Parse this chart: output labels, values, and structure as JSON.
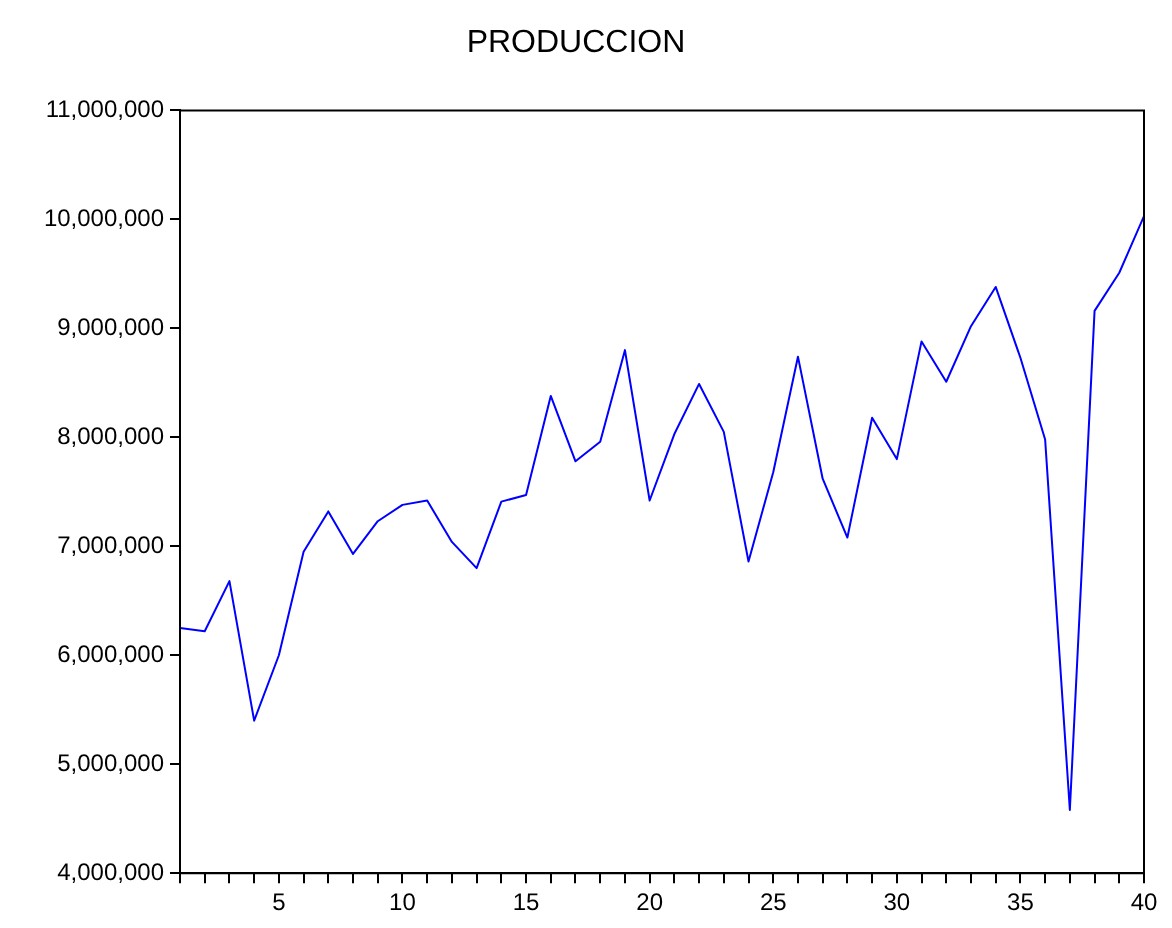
{
  "chart_data": {
    "type": "line",
    "title": "PRODUCCION",
    "x": [
      1,
      2,
      3,
      4,
      5,
      6,
      7,
      8,
      9,
      10,
      11,
      12,
      13,
      14,
      15,
      16,
      17,
      18,
      19,
      20,
      21,
      22,
      23,
      24,
      25,
      26,
      27,
      28,
      29,
      30,
      31,
      32,
      33,
      34,
      35,
      36,
      37,
      38,
      39,
      40
    ],
    "series": [
      {
        "color": "#0000ff",
        "values": [
          6250000,
          6220000,
          6680000,
          5400000,
          6000000,
          6950000,
          7320000,
          6930000,
          7230000,
          7380000,
          7420000,
          7040000,
          6800000,
          7410000,
          7470000,
          8380000,
          7780000,
          7960000,
          8800000,
          7420000,
          8030000,
          8490000,
          8050000,
          6860000,
          7680000,
          8740000,
          7620000,
          7080000,
          8180000,
          7800000,
          8880000,
          8510000,
          9020000,
          9380000,
          8730000,
          7980000,
          4580000,
          9160000,
          9510000,
          10030000
        ]
      }
    ],
    "xlim": [
      1,
      40
    ],
    "xticks": [
      {
        "value": 1,
        "label": null
      },
      {
        "value": 2,
        "label": null
      },
      {
        "value": 3,
        "label": null
      },
      {
        "value": 4,
        "label": null
      },
      5,
      {
        "value": 6,
        "label": null
      },
      {
        "value": 7,
        "label": null
      },
      {
        "value": 8,
        "label": null
      },
      {
        "value": 9,
        "label": null
      },
      10,
      {
        "value": 11,
        "label": null
      },
      {
        "value": 12,
        "label": null
      },
      {
        "value": 13,
        "label": null
      },
      {
        "value": 14,
        "label": null
      },
      15,
      {
        "value": 16,
        "label": null
      },
      {
        "value": 17,
        "label": null
      },
      {
        "value": 18,
        "label": null
      },
      {
        "value": 19,
        "label": null
      },
      20,
      {
        "value": 21,
        "label": null
      },
      {
        "value": 22,
        "label": null
      },
      {
        "value": 23,
        "label": null
      },
      {
        "value": 24,
        "label": null
      },
      25,
      {
        "value": 26,
        "label": null
      },
      {
        "value": 27,
        "label": null
      },
      {
        "value": 28,
        "label": null
      },
      {
        "value": 29,
        "label": null
      },
      30,
      {
        "value": 31,
        "label": null
      },
      {
        "value": 32,
        "label": null
      },
      {
        "value": 33,
        "label": null
      },
      {
        "value": 34,
        "label": null
      },
      35,
      {
        "value": 36,
        "label": null
      },
      {
        "value": 37,
        "label": null
      },
      {
        "value": 38,
        "label": null
      },
      {
        "value": 39,
        "label": null
      },
      40
    ],
    "ylim": [
      4000000,
      11000000
    ],
    "yticks": [
      {
        "value": 4000000,
        "label": "4,000,000"
      },
      {
        "value": 5000000,
        "label": "5,000,000"
      },
      {
        "value": 6000000,
        "label": "6,000,000"
      },
      {
        "value": 7000000,
        "label": "7,000,000"
      },
      {
        "value": 8000000,
        "label": "8,000,000"
      },
      {
        "value": 9000000,
        "label": "9,000,000"
      },
      {
        "value": 10000000,
        "label": "10,000,000"
      },
      {
        "value": 11000000,
        "label": "11,000,000"
      }
    ],
    "marker": "none",
    "line_style": "solid"
  }
}
